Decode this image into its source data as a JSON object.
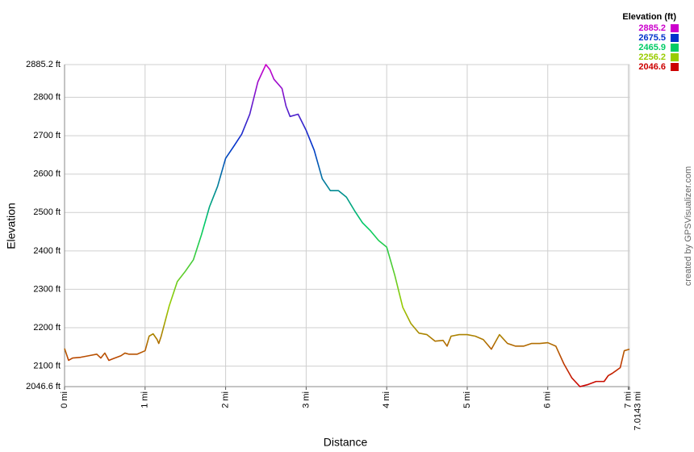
{
  "chart_data": {
    "type": "line",
    "xlabel": "Distance",
    "ylabel": "Elevation",
    "credit": "created by GPSVisualizer.com",
    "colorscale": {
      "title": "Elevation (ft)",
      "values": [
        2885.2,
        2675.5,
        2465.9,
        2256.2,
        2046.6
      ],
      "colors": [
        "#cc00cc",
        "#0033cc",
        "#00cc66",
        "#99cc00",
        "#cc0000"
      ]
    },
    "xlim": [
      0,
      7.0143
    ],
    "ylim": [
      2046.6,
      2885.2
    ],
    "grid": true,
    "xticks": [
      {
        "value": 0,
        "label": "0 mi"
      },
      {
        "value": 1,
        "label": "1 mi"
      },
      {
        "value": 2,
        "label": "2 mi"
      },
      {
        "value": 3,
        "label": "3 mi"
      },
      {
        "value": 4,
        "label": "4 mi"
      },
      {
        "value": 5,
        "label": "5 mi"
      },
      {
        "value": 6,
        "label": "6 mi"
      },
      {
        "value": 7,
        "label": "7 mi"
      },
      {
        "value": 7.0143,
        "label": "7.0143 mi"
      }
    ],
    "yticks": [
      {
        "value": 2046.6,
        "label": "2046.6 ft"
      },
      {
        "value": 2100,
        "label": "2100 ft"
      },
      {
        "value": 2200,
        "label": "2200 ft"
      },
      {
        "value": 2300,
        "label": "2300 ft"
      },
      {
        "value": 2400,
        "label": "2400 ft"
      },
      {
        "value": 2500,
        "label": "2500 ft"
      },
      {
        "value": 2600,
        "label": "2600 ft"
      },
      {
        "value": 2700,
        "label": "2700 ft"
      },
      {
        "value": 2800,
        "label": "2800 ft"
      },
      {
        "value": 2885.2,
        "label": "2885.2 ft"
      }
    ],
    "x": [
      0,
      0.05,
      0.1,
      0.2,
      0.3,
      0.4,
      0.45,
      0.5,
      0.55,
      0.6,
      0.7,
      0.75,
      0.8,
      0.9,
      1.0,
      1.05,
      1.1,
      1.15,
      1.17,
      1.2,
      1.3,
      1.4,
      1.5,
      1.6,
      1.7,
      1.8,
      1.9,
      2.0,
      2.1,
      2.2,
      2.3,
      2.4,
      2.5,
      2.55,
      2.6,
      2.7,
      2.75,
      2.8,
      2.9,
      3.0,
      3.1,
      3.2,
      3.3,
      3.4,
      3.5,
      3.6,
      3.7,
      3.8,
      3.9,
      4.0,
      4.1,
      4.2,
      4.3,
      4.4,
      4.5,
      4.6,
      4.7,
      4.75,
      4.8,
      4.9,
      5.0,
      5.1,
      5.2,
      5.3,
      5.4,
      5.5,
      5.6,
      5.7,
      5.8,
      5.9,
      6.0,
      6.1,
      6.2,
      6.3,
      6.4,
      6.5,
      6.6,
      6.7,
      6.75,
      6.8,
      6.9,
      6.95,
      7.0143
    ],
    "series": [
      {
        "name": "Elevation",
        "values": [
          2146,
          2115,
          2121,
          2123,
          2127,
          2131,
          2121,
          2134,
          2115,
          2119,
          2127,
          2134,
          2131,
          2131,
          2140,
          2178,
          2184,
          2169,
          2159,
          2178,
          2257,
          2320,
          2347,
          2377,
          2442,
          2515,
          2568,
          2641,
          2672,
          2704,
          2756,
          2840,
          2885.2,
          2872,
          2847,
          2823,
          2777,
          2750,
          2756,
          2714,
          2662,
          2588,
          2557,
          2557,
          2540,
          2505,
          2473,
          2452,
          2427,
          2410,
          2337,
          2253,
          2211,
          2186,
          2182,
          2165,
          2167,
          2152,
          2178,
          2182,
          2182,
          2178,
          2169,
          2144,
          2182,
          2159,
          2152,
          2152,
          2159,
          2159,
          2161,
          2152,
          2106,
          2069,
          2046.6,
          2052,
          2060,
          2060,
          2075,
          2081,
          2096,
          2140,
          2144
        ]
      }
    ]
  }
}
